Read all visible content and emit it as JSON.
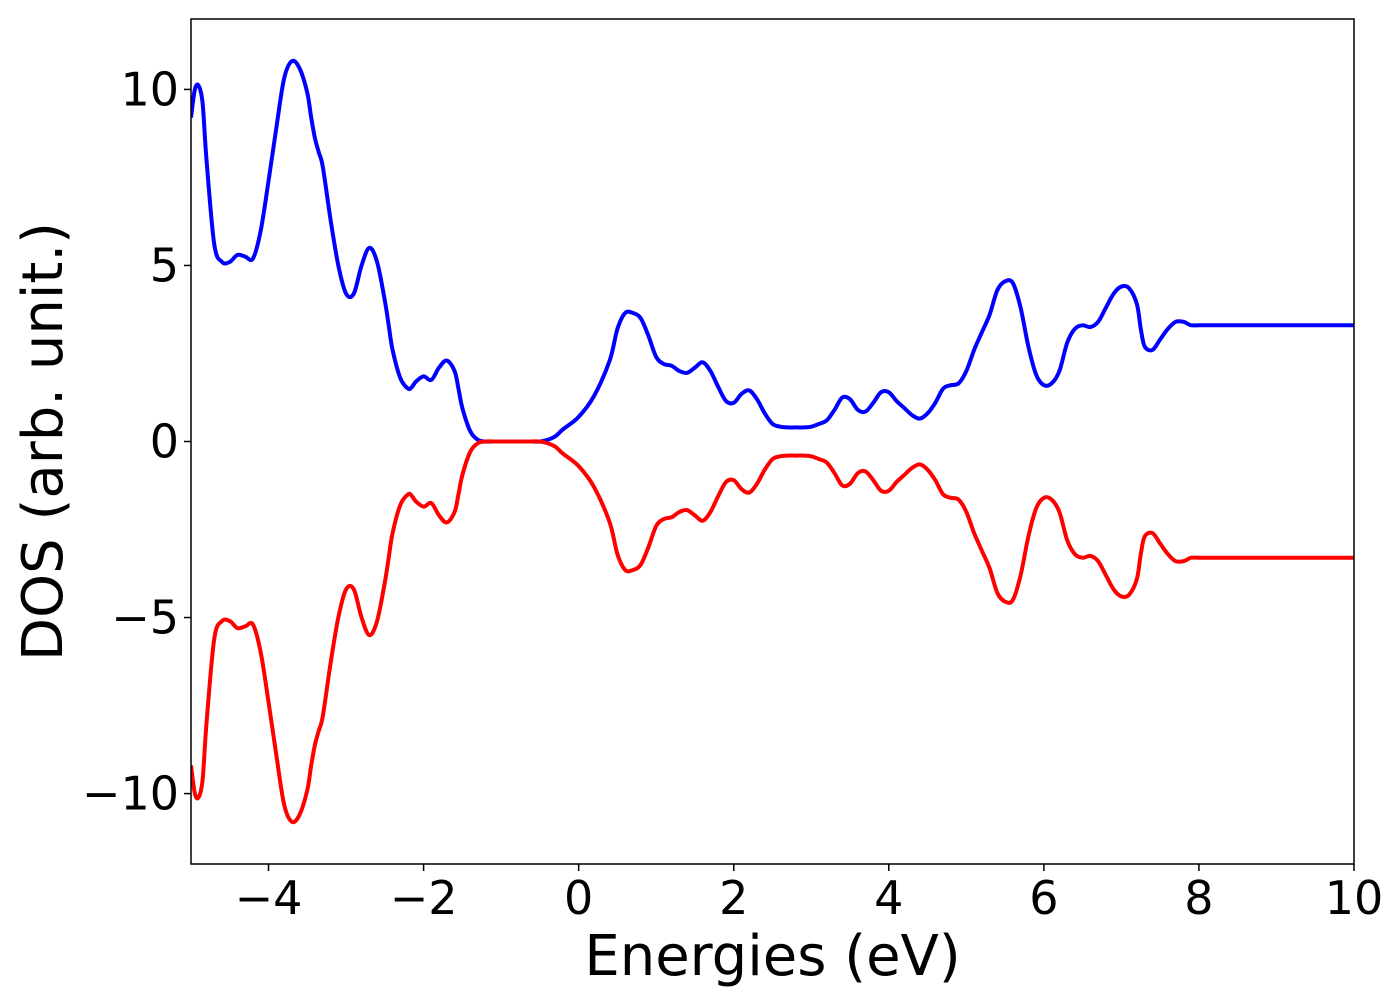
{
  "chart_data": {
    "type": "line",
    "title": "",
    "xlabel": "Energies (eV)",
    "ylabel": "DOS (arb. unit.)",
    "xlim": [
      -5,
      10
    ],
    "ylim": [
      -12,
      12
    ],
    "xticks": [
      -4,
      -2,
      0,
      2,
      4,
      6,
      8,
      10
    ],
    "xtick_labels": [
      "−4",
      "−2",
      "0",
      "2",
      "4",
      "6",
      "8",
      "10"
    ],
    "yticks": [
      -10,
      -5,
      0,
      5,
      10
    ],
    "ytick_labels": [
      "−10",
      "−5",
      "0",
      "5",
      "10"
    ],
    "grid": false,
    "legend": "none",
    "series": [
      {
        "color": "#0000ff",
        "x": [
          -5.0,
          -4.95,
          -4.9,
          -4.85,
          -4.8,
          -4.7,
          -4.6,
          -4.5,
          -4.4,
          -4.3,
          -4.2,
          -4.1,
          -4.0,
          -3.9,
          -3.8,
          -3.7,
          -3.6,
          -3.5,
          -3.45,
          -3.4,
          -3.35,
          -3.3,
          -3.2,
          -3.1,
          -3.0,
          -2.9,
          -2.8,
          -2.7,
          -2.6,
          -2.5,
          -2.45,
          -2.4,
          -2.3,
          -2.2,
          -2.15,
          -2.1,
          -2.0,
          -1.9,
          -1.8,
          -1.7,
          -1.6,
          -1.55,
          -1.5,
          -1.4,
          -1.3,
          -1.2,
          -1.1,
          -1.0,
          -0.9,
          -0.85,
          -0.8,
          -0.7,
          -0.6,
          -0.5,
          -0.4,
          -0.3,
          -0.2,
          0.0,
          0.2,
          0.4,
          0.5,
          0.6,
          0.7,
          0.8,
          0.9,
          1.0,
          1.1,
          1.2,
          1.3,
          1.4,
          1.5,
          1.6,
          1.7,
          1.8,
          1.9,
          2.0,
          2.1,
          2.2,
          2.3,
          2.4,
          2.5,
          2.6,
          2.7,
          2.8,
          2.9,
          3.0,
          3.1,
          3.2,
          3.3,
          3.4,
          3.5,
          3.6,
          3.7,
          3.8,
          3.9,
          4.0,
          4.1,
          4.2,
          4.3,
          4.4,
          4.5,
          4.6,
          4.7,
          4.8,
          4.9,
          5.0,
          5.1,
          5.2,
          5.3,
          5.4,
          5.5,
          5.6,
          5.7,
          5.8,
          5.9,
          6.0,
          6.1,
          6.2,
          6.3,
          6.4,
          6.5,
          6.6,
          6.7,
          6.8,
          6.9,
          7.0,
          7.1,
          7.2,
          7.25,
          7.3,
          7.4,
          7.5,
          7.6,
          7.7,
          7.8,
          7.85,
          7.9,
          8.0,
          8.1,
          8.2,
          8.3,
          8.4,
          8.5,
          8.6,
          8.7,
          8.8,
          8.9,
          9.0,
          9.1,
          9.2,
          9.3,
          9.4,
          9.5,
          9.6,
          9.7,
          9.8,
          9.9,
          10.0
        ],
        "y": [
          9.2,
          10.0,
          10.1,
          9.6,
          8.0,
          5.6,
          5.1,
          5.1,
          5.3,
          5.25,
          5.2,
          6.0,
          7.4,
          8.9,
          10.3,
          10.8,
          10.6,
          9.9,
          9.2,
          8.6,
          8.2,
          7.8,
          6.3,
          5.0,
          4.2,
          4.2,
          5.0,
          5.5,
          5.1,
          4.0,
          3.3,
          2.6,
          1.8,
          1.5,
          1.55,
          1.7,
          1.85,
          1.75,
          2.1,
          2.3,
          2.0,
          1.5,
          0.95,
          0.3,
          0.05,
          0.0,
          0.0,
          0.0,
          0.0,
          0.0,
          0.0,
          0.0,
          0.0,
          0.0,
          0.05,
          0.15,
          0.35,
          0.7,
          1.3,
          2.3,
          3.2,
          3.65,
          3.65,
          3.5,
          3.0,
          2.4,
          2.2,
          2.15,
          2.0,
          1.95,
          2.1,
          2.25,
          2.0,
          1.55,
          1.15,
          1.1,
          1.35,
          1.45,
          1.2,
          0.8,
          0.5,
          0.42,
          0.4,
          0.4,
          0.4,
          0.42,
          0.5,
          0.6,
          0.9,
          1.25,
          1.2,
          0.9,
          0.85,
          1.1,
          1.4,
          1.4,
          1.15,
          0.95,
          0.75,
          0.65,
          0.8,
          1.1,
          1.5,
          1.6,
          1.65,
          2.0,
          2.6,
          3.1,
          3.6,
          4.3,
          4.55,
          4.5,
          3.8,
          2.7,
          1.9,
          1.6,
          1.65,
          2.0,
          2.8,
          3.2,
          3.3,
          3.25,
          3.4,
          3.8,
          4.2,
          4.4,
          4.35,
          3.9,
          3.2,
          2.7,
          2.6,
          2.9,
          3.2,
          3.4,
          3.4,
          3.35,
          3.3,
          3.3,
          3.3,
          3.3,
          3.3,
          3.3,
          3.3,
          3.3,
          3.3,
          3.3,
          3.3,
          3.3,
          3.3,
          3.3,
          3.3,
          3.3,
          3.3,
          3.3,
          3.3,
          3.3,
          3.3,
          3.3
        ]
      },
      {
        "color": "#ff0000",
        "x": [
          -5.0,
          -4.95,
          -4.9,
          -4.85,
          -4.8,
          -4.7,
          -4.6,
          -4.5,
          -4.4,
          -4.3,
          -4.2,
          -4.1,
          -4.0,
          -3.9,
          -3.8,
          -3.7,
          -3.6,
          -3.5,
          -3.45,
          -3.4,
          -3.35,
          -3.3,
          -3.2,
          -3.1,
          -3.0,
          -2.9,
          -2.8,
          -2.7,
          -2.6,
          -2.5,
          -2.45,
          -2.4,
          -2.3,
          -2.2,
          -2.15,
          -2.1,
          -2.0,
          -1.9,
          -1.8,
          -1.7,
          -1.6,
          -1.55,
          -1.5,
          -1.4,
          -1.3,
          -1.2,
          -1.1,
          -1.0,
          -0.9,
          -0.85,
          -0.8,
          -0.7,
          -0.6,
          -0.5,
          -0.4,
          -0.3,
          -0.2,
          0.0,
          0.2,
          0.4,
          0.5,
          0.6,
          0.7,
          0.8,
          0.9,
          1.0,
          1.1,
          1.2,
          1.3,
          1.4,
          1.5,
          1.6,
          1.7,
          1.8,
          1.9,
          2.0,
          2.1,
          2.2,
          2.3,
          2.4,
          2.5,
          2.6,
          2.7,
          2.8,
          2.9,
          3.0,
          3.1,
          3.2,
          3.3,
          3.4,
          3.5,
          3.6,
          3.7,
          3.8,
          3.9,
          4.0,
          4.1,
          4.2,
          4.3,
          4.4,
          4.5,
          4.6,
          4.7,
          4.8,
          4.9,
          5.0,
          5.1,
          5.2,
          5.3,
          5.4,
          5.5,
          5.6,
          5.7,
          5.8,
          5.9,
          6.0,
          6.1,
          6.2,
          6.3,
          6.4,
          6.5,
          6.6,
          6.7,
          6.8,
          6.9,
          7.0,
          7.1,
          7.2,
          7.25,
          7.3,
          7.4,
          7.5,
          7.6,
          7.7,
          7.8,
          7.85,
          7.9,
          8.0,
          8.1,
          8.2,
          8.3,
          8.4,
          8.5,
          8.6,
          8.7,
          8.8,
          8.9,
          9.0,
          9.1,
          9.2,
          9.3,
          9.4,
          9.5,
          9.6,
          9.7,
          9.8,
          9.9,
          10.0
        ],
        "y": [
          -9.2,
          -10.0,
          -10.1,
          -9.6,
          -8.0,
          -5.6,
          -5.1,
          -5.1,
          -5.3,
          -5.25,
          -5.2,
          -6.0,
          -7.4,
          -8.9,
          -10.3,
          -10.8,
          -10.6,
          -9.9,
          -9.2,
          -8.6,
          -8.2,
          -7.8,
          -6.3,
          -5.0,
          -4.2,
          -4.2,
          -5.0,
          -5.5,
          -5.1,
          -4.0,
          -3.3,
          -2.6,
          -1.8,
          -1.5,
          -1.55,
          -1.7,
          -1.85,
          -1.75,
          -2.1,
          -2.3,
          -2.0,
          -1.5,
          -0.95,
          -0.3,
          -0.05,
          -0.0,
          -0.0,
          -0.0,
          -0.0,
          -0.0,
          -0.0,
          -0.0,
          -0.0,
          -0.0,
          -0.05,
          -0.15,
          -0.35,
          -0.7,
          -1.3,
          -2.3,
          -3.2,
          -3.65,
          -3.65,
          -3.5,
          -3.0,
          -2.4,
          -2.2,
          -2.15,
          -2.0,
          -1.95,
          -2.1,
          -2.25,
          -2.0,
          -1.55,
          -1.15,
          -1.1,
          -1.35,
          -1.45,
          -1.2,
          -0.8,
          -0.5,
          -0.42,
          -0.4,
          -0.4,
          -0.4,
          -0.42,
          -0.5,
          -0.6,
          -0.9,
          -1.25,
          -1.2,
          -0.9,
          -0.85,
          -1.1,
          -1.4,
          -1.4,
          -1.15,
          -0.95,
          -0.75,
          -0.65,
          -0.8,
          -1.1,
          -1.5,
          -1.6,
          -1.65,
          -2.0,
          -2.6,
          -3.1,
          -3.6,
          -4.3,
          -4.55,
          -4.5,
          -3.8,
          -2.7,
          -1.9,
          -1.6,
          -1.65,
          -2.0,
          -2.8,
          -3.2,
          -3.3,
          -3.25,
          -3.4,
          -3.8,
          -4.2,
          -4.4,
          -4.35,
          -3.9,
          -3.2,
          -2.7,
          -2.6,
          -2.9,
          -3.2,
          -3.4,
          -3.4,
          -3.35,
          -3.3,
          -3.3,
          -3.3,
          -3.3,
          -3.3,
          -3.3,
          -3.3,
          -3.3,
          -3.3,
          -3.3,
          -3.3,
          -3.3,
          -3.3,
          -3.3,
          -3.3,
          -3.3,
          -3.3,
          -3.3,
          -3.3,
          -3.3,
          -3.3,
          -3.3
        ]
      }
    ]
  }
}
